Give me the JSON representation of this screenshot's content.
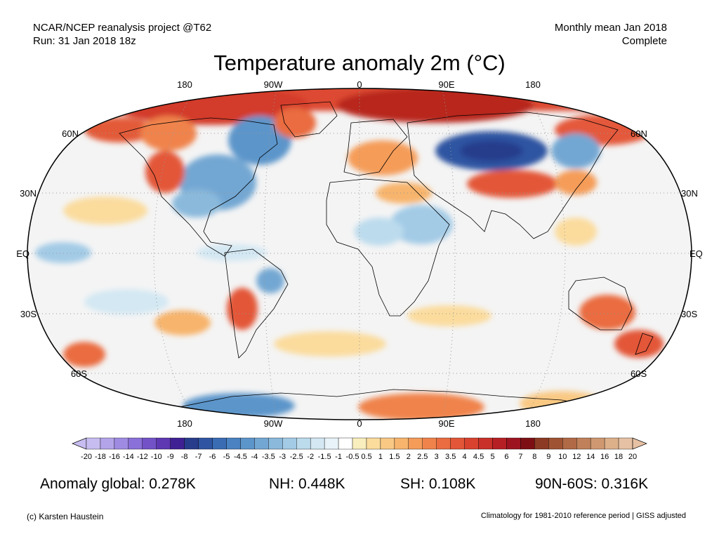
{
  "header": {
    "left_line1": "NCAR/NCEP reanalysis project @T62",
    "left_line2": "Run: 31 Jan 2018 18z",
    "right_line1": "Monthly mean Jan 2018",
    "right_line2": "Complete"
  },
  "title": "Temperature anomaly 2m (°C)",
  "map": {
    "lon_labels": [
      "180",
      "90W",
      "0",
      "90E",
      "180"
    ],
    "lat_labels_left": [
      "60N",
      "30N",
      "EQ",
      "30S",
      "60S"
    ],
    "lat_labels_right": [
      "60N",
      "30N",
      "EQ",
      "30S",
      "60S"
    ],
    "colors": {
      "ocean_neutral": "#f4f4f4",
      "land_line": "#000000",
      "warm": "#e8502e",
      "cold": "#2d4fa6"
    }
  },
  "colorbar": {
    "labels": [
      "-20",
      "-18",
      "-16",
      "-14",
      "-12",
      "-10",
      "-9",
      "-8",
      "-7",
      "-6",
      "-5",
      "-4.5",
      "-4",
      "-3.5",
      "-3",
      "-2.5",
      "-2",
      "-1.5",
      "-1",
      "-0.5",
      "0.5",
      "1",
      "1.5",
      "2",
      "2.5",
      "3",
      "3.5",
      "4",
      "4.5",
      "5",
      "6",
      "7",
      "8",
      "9",
      "10",
      "12",
      "14",
      "16",
      "18",
      "20"
    ],
    "colors": [
      "#c7bdf0",
      "#b3a4ea",
      "#a08be3",
      "#8a70d9",
      "#7352c8",
      "#5e37b3",
      "#3f2194",
      "#283c8c",
      "#2f55a2",
      "#3a6cb4",
      "#4a82c2",
      "#5c95ca",
      "#73a7d3",
      "#8ab9dc",
      "#a3cbe6",
      "#bcdbed",
      "#d3e8f3",
      "#e8f3f9",
      "#ffffff",
      "#f9eebd",
      "#fbdc9d",
      "#f9c984",
      "#f7b46c",
      "#f59c59",
      "#f0834b",
      "#ea6c40",
      "#e35637",
      "#d8422f",
      "#c93029",
      "#b61f24",
      "#9d1420",
      "#7d0f14",
      "#8c3a24",
      "#a05333",
      "#b06a46",
      "#c0815a",
      "#cf9870",
      "#ddb08a",
      "#e7c1a3"
    ]
  },
  "stats": {
    "global": "Anomaly global: 0.278K",
    "nh": "NH: 0.448K",
    "sh": "SH: 0.108K",
    "arctic": "90N-60S: 0.316K"
  },
  "credits": {
    "left": "(c) Karsten Haustein",
    "right": "Climatology for 1981-2010 reference period | GISS adjusted"
  }
}
